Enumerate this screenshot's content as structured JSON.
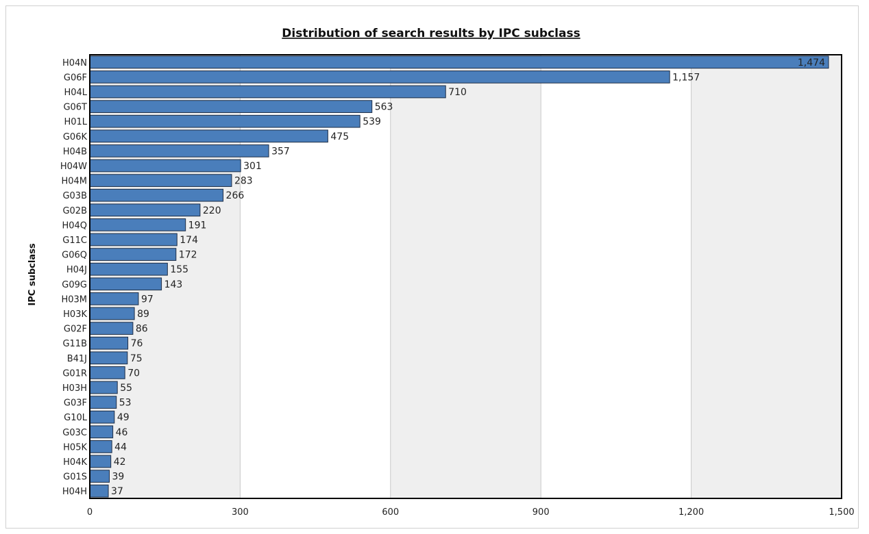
{
  "chart_data": {
    "type": "bar",
    "orientation": "horizontal",
    "title": "Distribution of search results by IPC subclass",
    "ylabel": "IPC subclass",
    "xlabel": "",
    "xlim": [
      0,
      1500
    ],
    "xticks": [
      0,
      300,
      600,
      900,
      1200,
      1500
    ],
    "xtick_labels": [
      "0",
      "300",
      "600",
      "900",
      "1,200",
      "1,500"
    ],
    "grid": true,
    "bar_color": "#4a7ebb",
    "categories": [
      "H04N",
      "G06F",
      "H04L",
      "G06T",
      "H01L",
      "G06K",
      "H04B",
      "H04W",
      "H04M",
      "G03B",
      "G02B",
      "H04Q",
      "G11C",
      "G06Q",
      "H04J",
      "G09G",
      "H03M",
      "H03K",
      "G02F",
      "G11B",
      "B41J",
      "G01R",
      "H03H",
      "G03F",
      "G10L",
      "G03C",
      "H05K",
      "H04K",
      "G01S",
      "H04H"
    ],
    "values": [
      1474,
      1157,
      710,
      563,
      539,
      475,
      357,
      301,
      283,
      266,
      220,
      191,
      174,
      172,
      155,
      143,
      97,
      89,
      86,
      76,
      75,
      70,
      55,
      53,
      49,
      46,
      44,
      42,
      39,
      37
    ],
    "value_labels": [
      "1,474",
      "1,157",
      "710",
      "563",
      "539",
      "475",
      "357",
      "301",
      "283",
      "266",
      "220",
      "191",
      "174",
      "172",
      "155",
      "143",
      "97",
      "89",
      "86",
      "76",
      "75",
      "70",
      "55",
      "53",
      "49",
      "46",
      "44",
      "42",
      "39",
      "37"
    ]
  }
}
